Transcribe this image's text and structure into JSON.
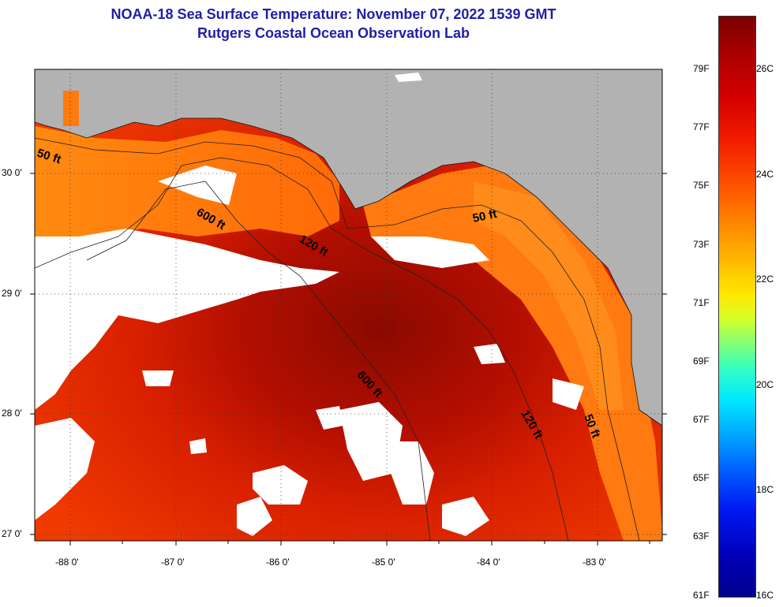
{
  "header": {
    "title": "NOAA-18 Sea Surface Temperature:  November 07, 2022 1539 GMT",
    "subtitle": "Rutgers Coastal Ocean Observation Lab"
  },
  "map": {
    "lat_labels": [
      "30 0'",
      "29 0'",
      "28 0'",
      "27 0'"
    ],
    "lon_labels": [
      "-88 0'",
      "-87 0'",
      "-86 0'",
      "-85 0'",
      "-84 0'",
      "-83 0'"
    ],
    "contour_labels": [
      "50 ft",
      "600 ft",
      "120 ft",
      "50 ft",
      "600 ft",
      "120 ft",
      "50 ft"
    ],
    "colors": {
      "land": "#b2b2b2",
      "cloud": "#ffffff",
      "warm": "#c81400",
      "cool": "#ff8a10"
    }
  },
  "colorbar": {
    "fahrenheit": [
      "79F",
      "77F",
      "75F",
      "73F",
      "71F",
      "69F",
      "67F",
      "65F",
      "63F",
      "61F"
    ],
    "celsius": [
      "26C",
      "24C",
      "22C",
      "20C",
      "18C",
      "16C"
    ]
  }
}
